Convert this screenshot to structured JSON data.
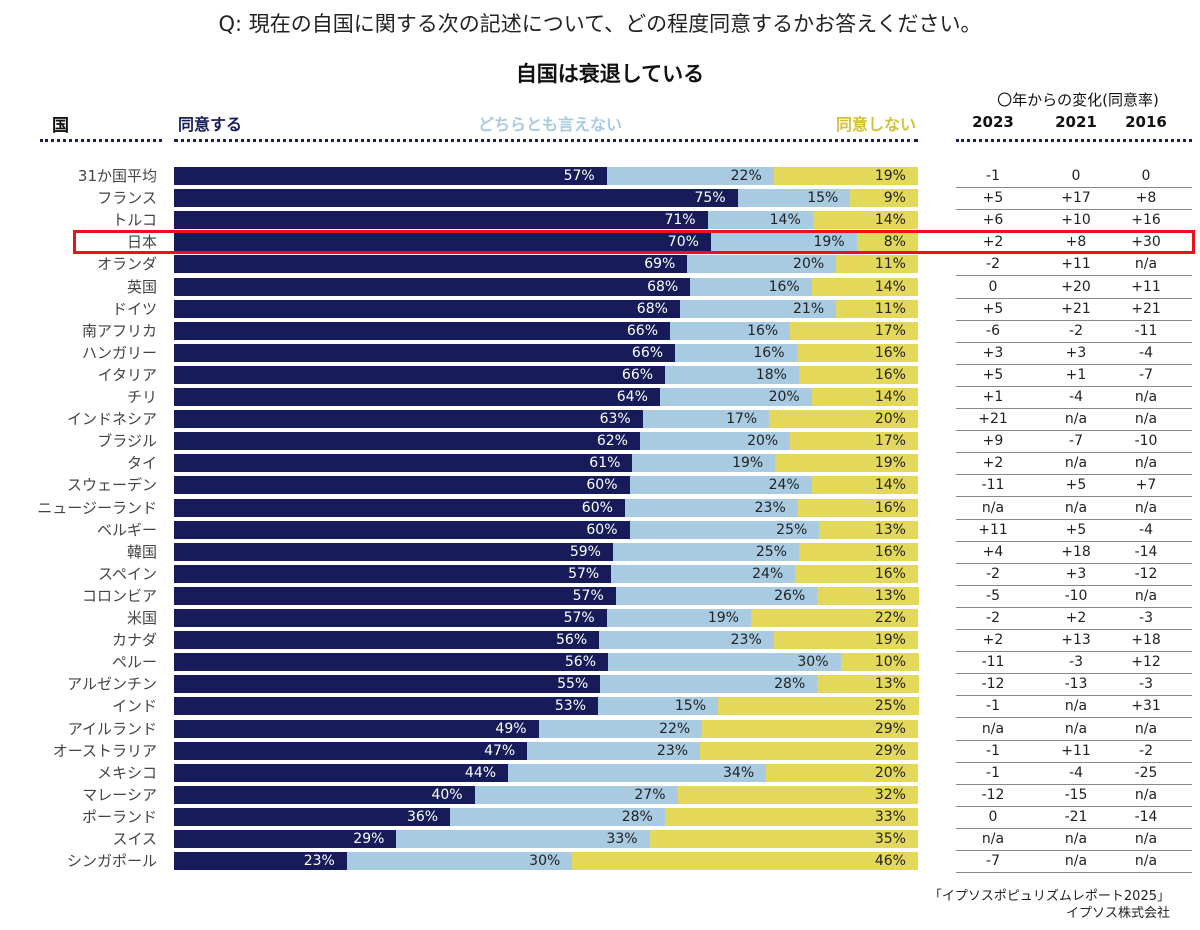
{
  "question": "Q: 現在の自国に関する次の記述について、どの程度同意するかお答えください。",
  "header": {
    "country": "国",
    "agree": "同意する",
    "neutral": "どちらとも言えない",
    "disagree": "同意しない",
    "change_title": "〇年からの変化(同意率)",
    "years": [
      "2023",
      "2021",
      "2016"
    ]
  },
  "highlight_country": "日本",
  "source": {
    "line1": "「イプソスポピュリズムレポート2025」",
    "line2": "イプソス株式会社"
  },
  "colors": {
    "agree": "#171b59",
    "neutral": "#a9cbe2",
    "disagree": "#e3d85a",
    "highlight": "#e8121b"
  },
  "chart_data": {
    "type": "bar",
    "stacked": true,
    "orientation": "horizontal",
    "title": "自国は衰退している",
    "categories": [
      "31か国平均",
      "フランス",
      "トルコ",
      "日本",
      "オランダ",
      "英国",
      "ドイツ",
      "南アフリカ",
      "ハンガリー",
      "イタリア",
      "チリ",
      "インドネシア",
      "ブラジル",
      "タイ",
      "スウェーデン",
      "ニュージーランド",
      "ベルギー",
      "韓国",
      "スペイン",
      "コロンビア",
      "米国",
      "カナダ",
      "ペルー",
      "アルゼンチン",
      "インド",
      "アイルランド",
      "オーストラリア",
      "メキシコ",
      "マレーシア",
      "ポーランド",
      "スイス",
      "シンガポール"
    ],
    "series": [
      {
        "name": "同意する",
        "values": [
          57,
          75,
          71,
          70,
          69,
          68,
          68,
          66,
          66,
          66,
          64,
          63,
          62,
          61,
          60,
          60,
          60,
          59,
          57,
          57,
          57,
          56,
          56,
          55,
          53,
          49,
          47,
          44,
          40,
          36,
          29,
          23
        ]
      },
      {
        "name": "どちらとも言えない",
        "values": [
          22,
          15,
          14,
          19,
          20,
          16,
          21,
          16,
          16,
          18,
          20,
          17,
          20,
          19,
          24,
          23,
          25,
          25,
          24,
          26,
          19,
          23,
          30,
          28,
          15,
          22,
          23,
          34,
          27,
          28,
          33,
          30
        ]
      },
      {
        "name": "同意しない",
        "values": [
          19,
          9,
          14,
          8,
          11,
          14,
          11,
          17,
          16,
          16,
          14,
          20,
          17,
          19,
          14,
          16,
          13,
          16,
          16,
          13,
          22,
          19,
          10,
          13,
          25,
          29,
          29,
          20,
          32,
          33,
          35,
          46
        ]
      }
    ],
    "value_suffix": "%",
    "change_table": {
      "2023": [
        "-1",
        "+5",
        "+6",
        "+2",
        "-2",
        "0",
        "+5",
        "-6",
        "+3",
        "+5",
        "+1",
        "+21",
        "+9",
        "+2",
        "-11",
        "n/a",
        "+11",
        "+4",
        "-2",
        "-5",
        "-2",
        "+2",
        "-11",
        "-12",
        "-1",
        "n/a",
        "-1",
        "-1",
        "-12",
        "0",
        "n/a",
        "-7"
      ],
      "2021": [
        "0",
        "+17",
        "+10",
        "+8",
        "+11",
        "+20",
        "+21",
        "-2",
        "+3",
        "+1",
        "-4",
        "n/a",
        "-7",
        "n/a",
        "+5",
        "n/a",
        "+5",
        "+18",
        "+3",
        "-10",
        "+2",
        "+13",
        "-3",
        "-13",
        "n/a",
        "n/a",
        "+11",
        "-4",
        "-15",
        "-21",
        "n/a",
        "n/a"
      ],
      "2016": [
        "0",
        "+8",
        "+16",
        "+30",
        "n/a",
        "+11",
        "+21",
        "-11",
        "-4",
        "-7",
        "n/a",
        "n/a",
        "-10",
        "n/a",
        "+7",
        "n/a",
        "-4",
        "-14",
        "-12",
        "n/a",
        "-3",
        "+18",
        "+12",
        "-3",
        "+31",
        "n/a",
        "-2",
        "-25",
        "n/a",
        "-14",
        "n/a",
        "n/a"
      ]
    }
  }
}
